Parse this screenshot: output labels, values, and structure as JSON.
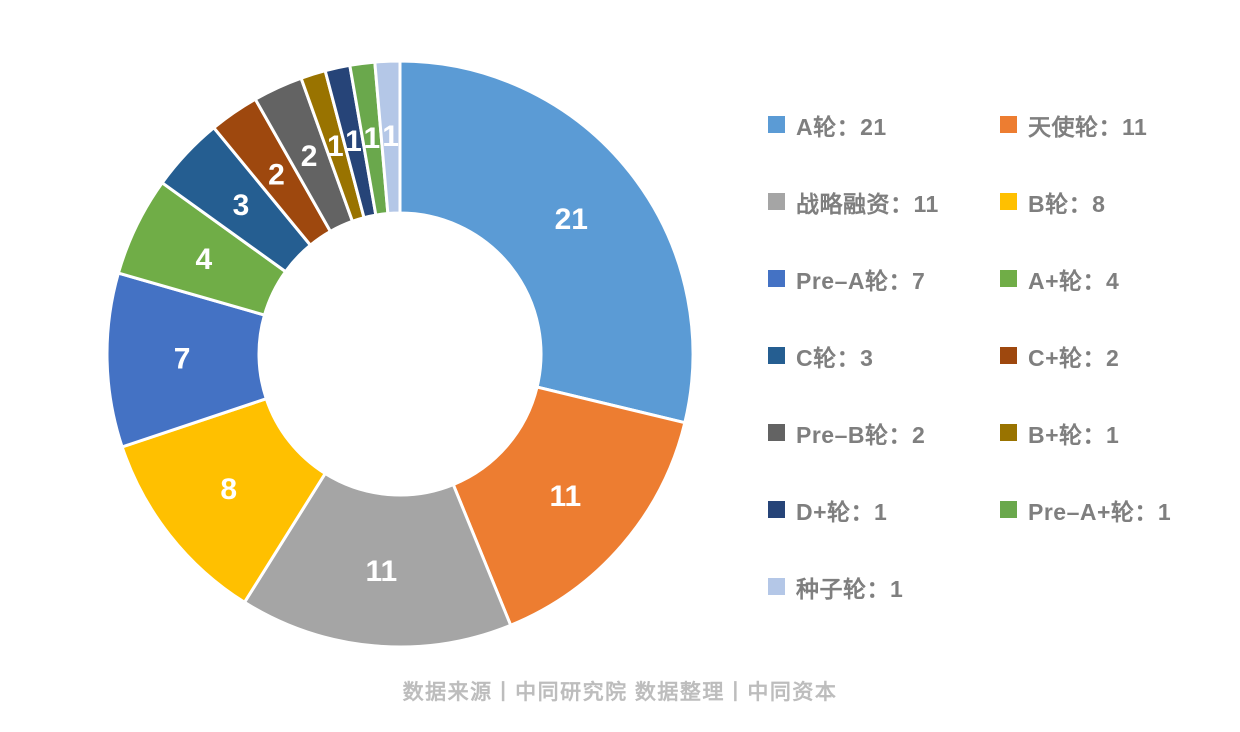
{
  "chart_data": {
    "type": "pie",
    "subtype": "donut",
    "title": "",
    "direction": "clockwise",
    "start_angle_deg": 0,
    "inner_radius_ratio": 0.48,
    "total": 73,
    "categories": [
      "A轮",
      "天使轮",
      "战略融资",
      "B轮",
      "Pre–A轮",
      "A+轮",
      "C轮",
      "C+轮",
      "Pre–B轮",
      "B+轮",
      "D+轮",
      "Pre–A+轮",
      "种子轮"
    ],
    "values": [
      21,
      11,
      11,
      8,
      7,
      4,
      3,
      2,
      2,
      1,
      1,
      1,
      1
    ],
    "colors": [
      "#5B9BD5",
      "#ED7D31",
      "#A5A5A5",
      "#FFC000",
      "#4472C4",
      "#70AD47",
      "#255E91",
      "#9E480E",
      "#636363",
      "#997300",
      "#264478",
      "#6AA84C",
      "#B4C7E7"
    ],
    "slice_label_color": "#FFFFFF",
    "slice_labels": [
      21,
      11,
      11,
      8,
      7,
      4,
      3,
      2,
      2,
      1,
      1,
      1,
      1
    ],
    "legend": {
      "position": "right",
      "columns": 2,
      "colon": "：",
      "text_color": "#7F7F7F"
    }
  },
  "footer": {
    "text": "数据来源丨中同研究院  数据整理丨中同资本",
    "color": "#BDBDBD"
  }
}
